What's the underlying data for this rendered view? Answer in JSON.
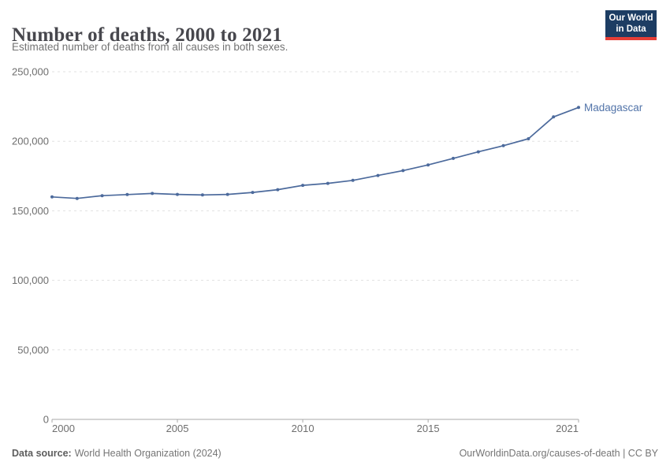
{
  "header": {
    "title": "Number of deaths, 2000 to 2021",
    "subtitle": "Estimated number of deaths from all causes in both sexes."
  },
  "logo": {
    "line1": "Our World",
    "line2": "in Data"
  },
  "footer": {
    "source_label": "Data source:",
    "source_value": "World Health Organization (2024)",
    "credit": "OurWorldinData.org/causes-of-death | CC BY"
  },
  "colors": {
    "line": "#4c6a9c",
    "entity_label": "#5274a9",
    "grid": "#e0e0e0",
    "axis": "#a8a8a8",
    "tick_text": "#6e6e6e",
    "logo_bg": "#1d3d63",
    "logo_red": "#e63e36"
  },
  "chart_data": {
    "type": "line",
    "entity": "Madagascar",
    "x": [
      2000,
      2001,
      2002,
      2003,
      2004,
      2005,
      2006,
      2007,
      2008,
      2009,
      2010,
      2011,
      2012,
      2013,
      2014,
      2015,
      2016,
      2017,
      2018,
      2019,
      2020,
      2021
    ],
    "values": [
      160000,
      158900,
      160900,
      161700,
      162500,
      161800,
      161400,
      161800,
      163200,
      165200,
      168300,
      169700,
      171900,
      175400,
      178900,
      183000,
      187700,
      192400,
      196800,
      201800,
      217500,
      224300
    ],
    "title": "Number of deaths, 2000 to 2021",
    "xlabel": "",
    "ylabel": "",
    "xlim": [
      2000,
      2021
    ],
    "ylim": [
      0,
      250000
    ],
    "yticks": [
      0,
      50000,
      100000,
      150000,
      200000,
      250000
    ],
    "xticks": [
      2000,
      2005,
      2010,
      2015,
      2021
    ],
    "grid": "horizontal-dashed",
    "legend": "end-of-line-label",
    "marker": "point"
  }
}
